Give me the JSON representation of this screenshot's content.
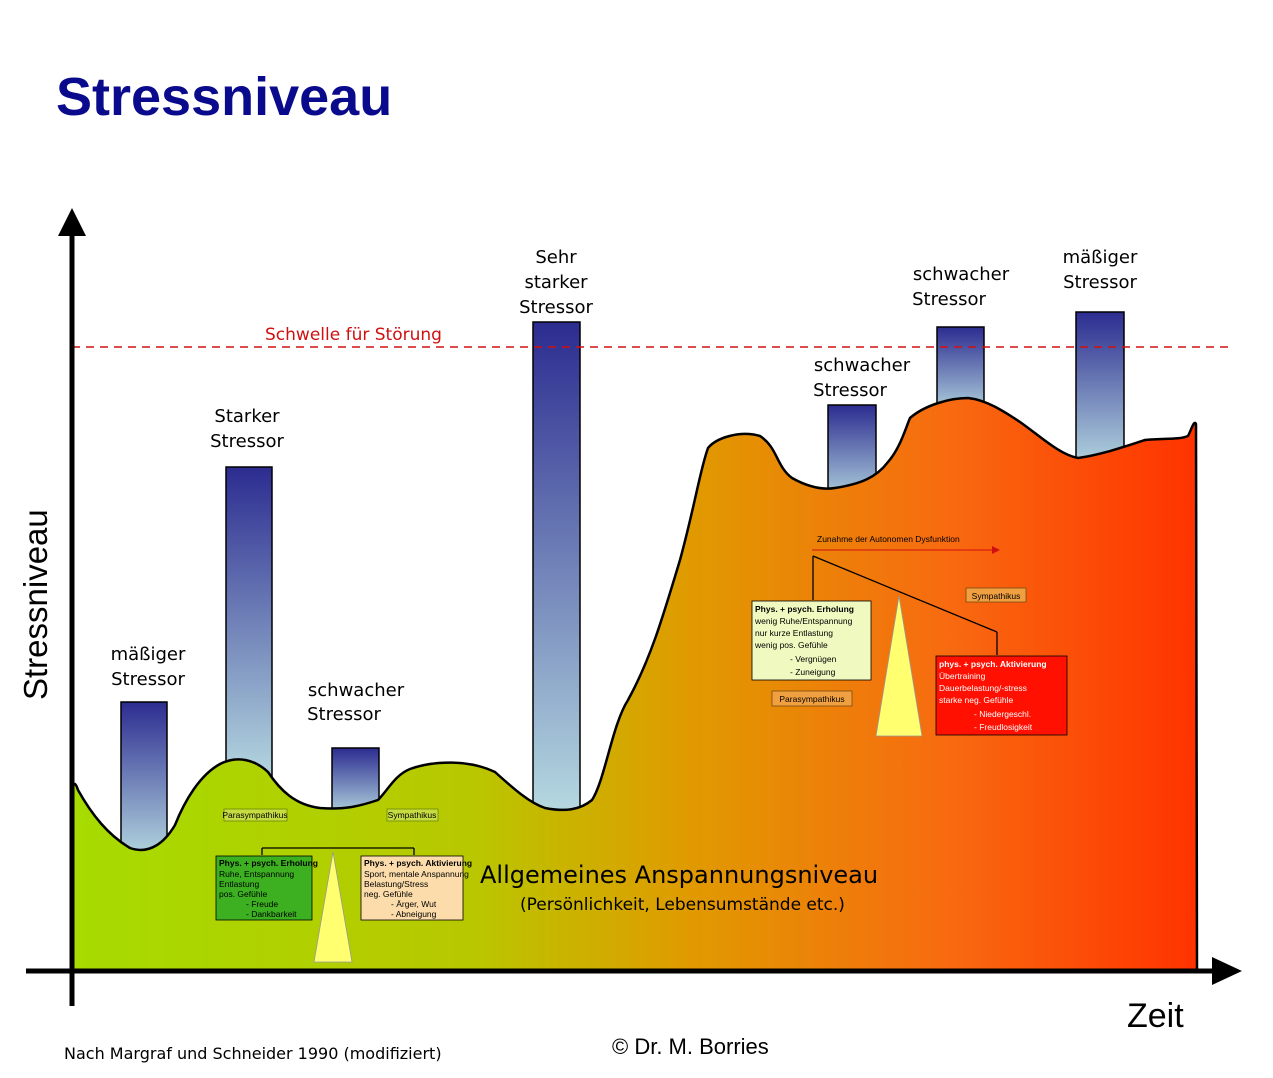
{
  "title": "Stressniveau",
  "y_axis_label": "Stressniveau",
  "x_axis_label": "Zeit",
  "threshold_label": "Schwelle für Störung",
  "baseline_label": "Allgemeines Anspannungsniveau",
  "baseline_sub": "(Persönlichkeit, Lebensumstände etc.)",
  "stressors": [
    {
      "lines": [
        "mäßiger",
        "Stressor"
      ]
    },
    {
      "lines": [
        "Starker",
        "Stressor"
      ]
    },
    {
      "lines": [
        "schwacher",
        "Stressor"
      ]
    },
    {
      "lines": [
        "Sehr",
        "starker",
        "Stressor"
      ]
    },
    {
      "lines": [
        "schwacher",
        "Stressor"
      ]
    },
    {
      "lines": [
        "schwacher",
        "Stressor"
      ]
    },
    {
      "lines": [
        "mäßiger",
        "Stressor"
      ]
    }
  ],
  "left_balance": {
    "parasym_label": "Parasympathikus",
    "sym_label": "Sympathikus",
    "green_box": [
      "Phys. + psych. Erholung",
      "Ruhe, Entspannung",
      "Entlastung",
      "pos. Gefühle",
      "- Freude",
      "- Dankbarkeit"
    ],
    "orange_box": [
      "Phys. + psych. Aktivierung",
      "Sport, mentale Anspannung",
      "Belastung/Stress",
      "neg. Gefühle",
      "- Ärger, Wut",
      "- Abneigung"
    ]
  },
  "right_balance": {
    "arrow_label": "Zunahme der Autonomen Dysfunktion",
    "parasym_label": "Parasympathikus",
    "sym_label": "Sympathikus",
    "green_box": [
      "Phys. + psych. Erholung",
      "wenig Ruhe/Entspannung",
      "nur kurze Entlastung",
      "wenig pos. Gefühle",
      "- Vergnügen",
      "- Zuneigung"
    ],
    "red_box": [
      "phys. + psych. Aktivierung",
      "Übertraining",
      "Dauerbelastung/-stress",
      "starke neg. Gefühle",
      "- Niedergeschl.",
      "- Freudlosigkeit"
    ]
  },
  "footer_source": "Nach Margraf und Schneider 1990 (modifiziert)",
  "footer_copyright": "© Dr. M. Borries",
  "colors": {
    "title": "#0a0a8c",
    "threshold": "#d01010",
    "gradient_start": "#a6dc00",
    "gradient_end": "#ff3300",
    "bar_top": "#2c2c90",
    "bar_bottom": "#b8dce2"
  }
}
